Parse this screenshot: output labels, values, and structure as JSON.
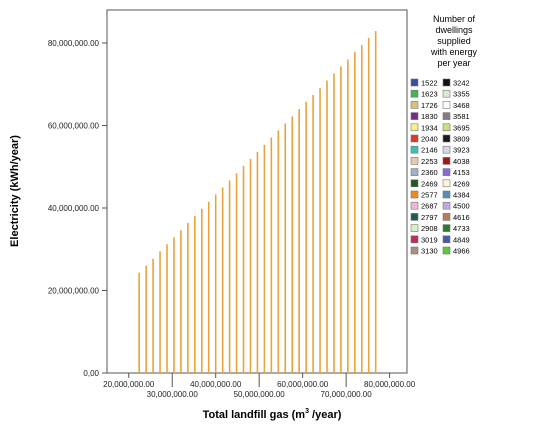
{
  "chart_data": {
    "type": "bar",
    "xlabel": "Total landfill gas (m",
    "xlabel_sup": "3",
    "xlabel_tail": " /year)",
    "ylabel": "Electricity (kWh/year)",
    "xlim": [
      15000000,
      84000000
    ],
    "ylim": [
      0,
      88000000
    ],
    "x_ticks": [
      20000000,
      30000000,
      40000000,
      50000000,
      60000000,
      70000000,
      80000000
    ],
    "x_tick_labels": [
      "20,000,000.00",
      "30,000,000.00",
      "40,000,000.00",
      "50,000,000.00",
      "60,000,000.00",
      "70,000,000.00",
      "80,000,000.00"
    ],
    "y_ticks": [
      0,
      20000000,
      40000000,
      60000000,
      80000000
    ],
    "y_tick_labels": [
      "0,00",
      "20,000,000.00",
      "40,000,000.00",
      "60,000,000.00",
      "80,000,000.00"
    ],
    "grid": false,
    "bar_color": "#e8a33c",
    "legend_placement": "right",
    "legend_title": "Number of dwellings supplied with energy per year",
    "legend_title_lines": [
      "Number of",
      "dwellings",
      "supplied",
      "with energy",
      "per year"
    ],
    "legend_col1": [
      {
        "label": "1522",
        "color": "#3b4fa0"
      },
      {
        "label": "1623",
        "color": "#4caf50"
      },
      {
        "label": "1726",
        "color": "#d8c27a"
      },
      {
        "label": "1830",
        "color": "#7b2a8a"
      },
      {
        "label": "1934",
        "color": "#f4f08a"
      },
      {
        "label": "2040",
        "color": "#d93a2b"
      },
      {
        "label": "2146",
        "color": "#3fbfb0"
      },
      {
        "label": "2253",
        "color": "#e8c9a8"
      },
      {
        "label": "2360",
        "color": "#9fb0c8"
      },
      {
        "label": "2469",
        "color": "#1f5a1f"
      },
      {
        "label": "2577",
        "color": "#f08a1c"
      },
      {
        "label": "2687",
        "color": "#f0b8d0"
      },
      {
        "label": "2797",
        "color": "#1f5a55"
      },
      {
        "label": "2908",
        "color": "#d8f0c0"
      },
      {
        "label": "3019",
        "color": "#c02a5a"
      },
      {
        "label": "3130",
        "color": "#a8907a"
      }
    ],
    "legend_col2": [
      {
        "label": "3242",
        "color": "#111111"
      },
      {
        "label": "3355",
        "color": "#d8ead0"
      },
      {
        "label": "3468",
        "color": "#ffffff"
      },
      {
        "label": "3581",
        "color": "#8a7a80"
      },
      {
        "label": "3695",
        "color": "#c8e07a"
      },
      {
        "label": "3809",
        "color": "#1a1a1a"
      },
      {
        "label": "3923",
        "color": "#d0d8e0"
      },
      {
        "label": "4038",
        "color": "#a01818"
      },
      {
        "label": "4153",
        "color": "#8a6ad8"
      },
      {
        "label": "4269",
        "color": "#fff4d8"
      },
      {
        "label": "4384",
        "color": "#5a8ab8"
      },
      {
        "label": "4500",
        "color": "#c0a8e0"
      },
      {
        "label": "4616",
        "color": "#b87a5a"
      },
      {
        "label": "4733",
        "color": "#2a7a2a"
      },
      {
        "label": "4849",
        "color": "#4a5aa8"
      },
      {
        "label": "4966",
        "color": "#5ac83a"
      }
    ],
    "x": [
      22400000,
      24000000,
      25600000,
      27200000,
      28800000,
      30400000,
      32000000,
      33600000,
      35200000,
      36800000,
      38400000,
      40000000,
      41600000,
      43200000,
      44800000,
      46400000,
      48000000,
      49600000,
      51200000,
      52800000,
      54400000,
      56000000,
      57600000,
      59200000,
      60800000,
      62400000,
      64000000,
      65600000,
      67200000,
      68800000,
      70400000,
      72000000,
      73600000,
      75200000,
      76800000
    ],
    "values": [
      24300000,
      26000000,
      27700000,
      29500000,
      31200000,
      32900000,
      34600000,
      36400000,
      38100000,
      39800000,
      41500000,
      43300000,
      45000000,
      46700000,
      48400000,
      50200000,
      51900000,
      53600000,
      55300000,
      57100000,
      58800000,
      60500000,
      62200000,
      64000000,
      65700000,
      67400000,
      69100000,
      70900000,
      72600000,
      74300000,
      76000000,
      77800000,
      79500000,
      81200000,
      82900000
    ]
  }
}
